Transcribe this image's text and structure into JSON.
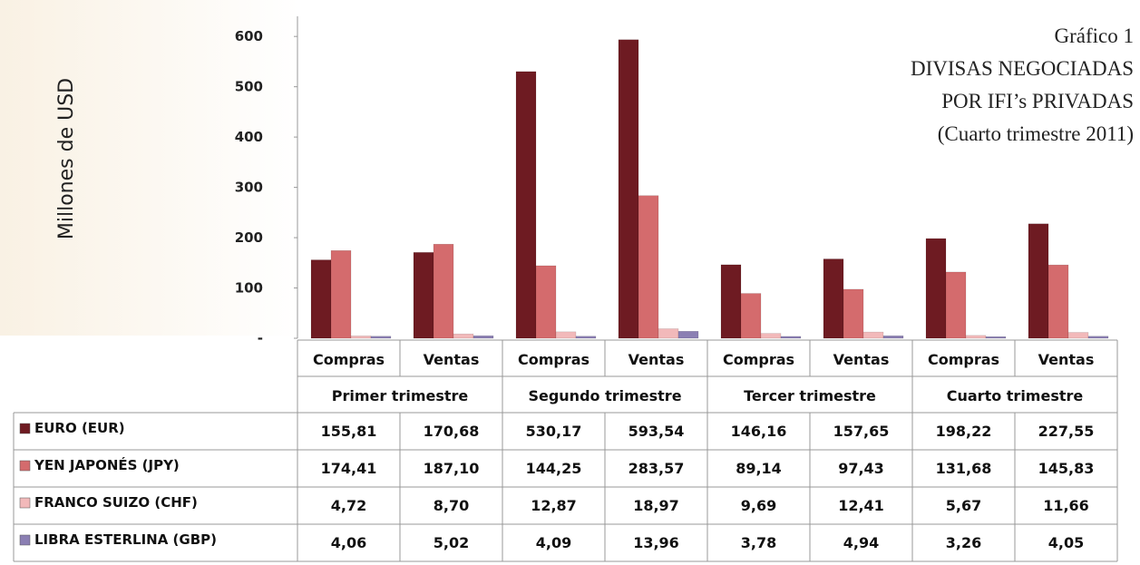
{
  "chart_data": {
    "type": "bar",
    "title": [
      "Gráfico 1",
      "DIVISAS NEGOCIADAS",
      "POR IFI’s PRIVADAS",
      "(Cuarto trimestre 2011)"
    ],
    "y_label": "Millones de USD",
    "categories": [
      "Compras",
      "Ventas",
      "Compras",
      "Ventas",
      "Compras",
      "Ventas",
      "Compras",
      "Ventas"
    ],
    "groups": [
      "Primer trimestre",
      "Segundo trimestre",
      "Tercer trimestre",
      "Cuarto trimestre"
    ],
    "ylim": [
      0,
      640
    ],
    "yticks": [
      {
        "value": 0,
        "label": "-"
      },
      100,
      200,
      300,
      400,
      500,
      600
    ],
    "series": [
      {
        "name": "EURO (EUR)",
        "color": "#6e1b22",
        "values": [
          155.81,
          170.68,
          530.17,
          593.54,
          146.16,
          157.65,
          198.22,
          227.55
        ],
        "value_labels": [
          "155,81",
          "170,68",
          "530,17",
          "593,54",
          "146,16",
          "157,65",
          "198,22",
          "227,55"
        ]
      },
      {
        "name": "YEN JAPONÉS (JPY)",
        "color": "#d46b6d",
        "values": [
          174.41,
          187.1,
          144.25,
          283.57,
          89.14,
          97.43,
          131.68,
          145.83
        ],
        "value_labels": [
          "174,41",
          "187,10",
          "144,25",
          "283,57",
          "89,14",
          "97,43",
          "131,68",
          "145,83"
        ]
      },
      {
        "name": "FRANCO SUIZO (CHF)",
        "color": "#f2b9ba",
        "values": [
          4.72,
          8.7,
          12.87,
          18.97,
          9.69,
          12.41,
          5.67,
          11.66
        ],
        "value_labels": [
          "4,72",
          "8,70",
          "12,87",
          "18,97",
          "9,69",
          "12,41",
          "5,67",
          "11,66"
        ]
      },
      {
        "name": "LIBRA ESTERLINA (GBP)",
        "color": "#8b7fb3",
        "values": [
          4.06,
          5.02,
          4.09,
          13.96,
          3.78,
          4.94,
          3.26,
          4.05
        ],
        "value_labels": [
          "4,06",
          "5,02",
          "4,09",
          "13,96",
          "3,78",
          "4,94",
          "3,26",
          "4,05"
        ]
      }
    ]
  }
}
